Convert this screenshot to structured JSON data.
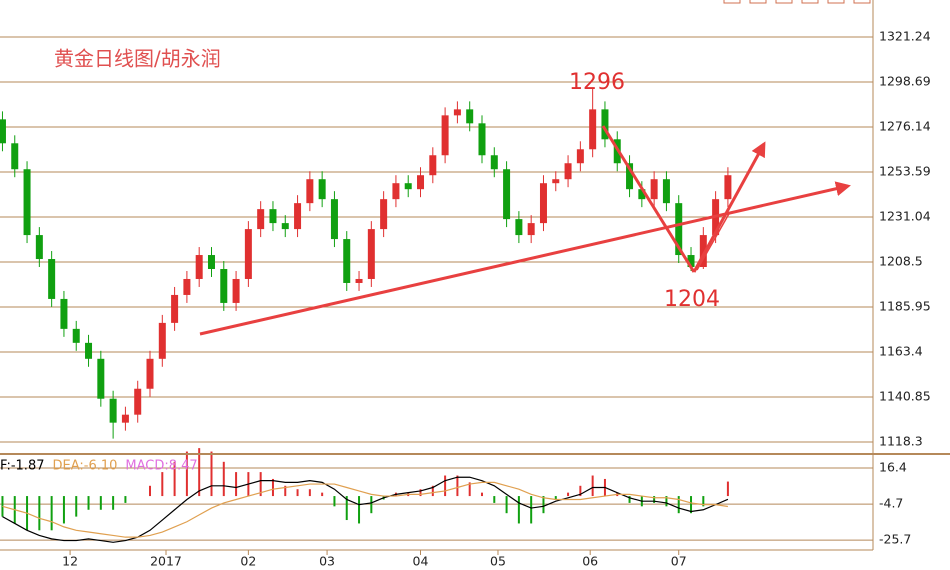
{
  "chart_data": {
    "type": "candlestick",
    "title": "黄金日线图/胡永润",
    "annotations": [
      "1296",
      "1204"
    ],
    "up_color": "#e03030",
    "down_color": "#10a010",
    "grid_color": "#b5895a",
    "open": [
      1280,
      1268,
      1255,
      1222,
      1210,
      1190,
      1175,
      1168,
      1160,
      1140,
      1128,
      1132,
      1145,
      1160,
      1178,
      1192,
      1200,
      1212,
      1205,
      1188,
      1200,
      1225,
      1235,
      1228,
      1225,
      1238,
      1250,
      1240,
      1220,
      1198,
      1200,
      1225,
      1240,
      1248,
      1245,
      1252,
      1262,
      1282,
      1285,
      1278,
      1262,
      1255,
      1230,
      1222,
      1228,
      1248,
      1250,
      1258,
      1265,
      1285,
      1270,
      1258,
      1245,
      1240,
      1250,
      1238,
      1212,
      1206,
      1222,
      1240
    ],
    "high": [
      1284,
      1272,
      1259,
      1226,
      1214,
      1194,
      1179,
      1172,
      1164,
      1144,
      1136,
      1149,
      1164,
      1182,
      1196,
      1204,
      1216,
      1216,
      1209,
      1204,
      1229,
      1239,
      1239,
      1232,
      1242,
      1254,
      1254,
      1244,
      1224,
      1204,
      1229,
      1244,
      1252,
      1252,
      1256,
      1266,
      1286,
      1289,
      1289,
      1282,
      1266,
      1259,
      1234,
      1232,
      1252,
      1254,
      1262,
      1269,
      1296,
      1289,
      1274,
      1262,
      1249,
      1254,
      1254,
      1242,
      1216,
      1226,
      1244,
      1256
    ],
    "low": [
      1264,
      1251,
      1218,
      1206,
      1186,
      1171,
      1164,
      1156,
      1136,
      1120,
      1124,
      1128,
      1141,
      1156,
      1174,
      1188,
      1196,
      1201,
      1184,
      1184,
      1196,
      1221,
      1224,
      1221,
      1221,
      1234,
      1236,
      1216,
      1194,
      1194,
      1196,
      1221,
      1236,
      1241,
      1241,
      1248,
      1258,
      1278,
      1274,
      1258,
      1251,
      1226,
      1218,
      1218,
      1224,
      1244,
      1246,
      1254,
      1261,
      1266,
      1254,
      1241,
      1236,
      1236,
      1234,
      1208,
      1204,
      1205,
      1218,
      1236
    ],
    "close": [
      1268,
      1255,
      1222,
      1210,
      1190,
      1175,
      1168,
      1160,
      1140,
      1128,
      1132,
      1145,
      1160,
      1178,
      1192,
      1200,
      1212,
      1205,
      1188,
      1200,
      1225,
      1235,
      1228,
      1225,
      1238,
      1250,
      1240,
      1220,
      1198,
      1200,
      1225,
      1240,
      1248,
      1245,
      1252,
      1262,
      1282,
      1285,
      1278,
      1262,
      1255,
      1230,
      1222,
      1228,
      1248,
      1250,
      1258,
      1265,
      1285,
      1270,
      1258,
      1245,
      1240,
      1250,
      1238,
      1212,
      1206,
      1222,
      1240,
      1252
    ],
    "ylim": [
      1113.3,
      1339.8
    ],
    "yticks": [
      1118.3,
      1140.85,
      1163.4,
      1185.95,
      1208.5,
      1231.04,
      1253.59,
      1276.14,
      1298.69,
      1321.24
    ],
    "xlim": [
      -0.2,
      70.8
    ],
    "xticks": [
      {
        "value": 5.5,
        "label": "12"
      },
      {
        "value": 13.3,
        "label": "2017"
      },
      {
        "value": 20,
        "label": "02"
      },
      {
        "value": 26.4,
        "label": "03"
      },
      {
        "value": 34,
        "label": "04"
      },
      {
        "value": 40.3,
        "label": "05"
      },
      {
        "value": 47.8,
        "label": "06"
      },
      {
        "value": 55,
        "label": "07"
      }
    ],
    "macd": {
      "legend": [
        {
          "name": "F:-1.87",
          "color": "#000000"
        },
        {
          "name": "DEA:-6.10",
          "color": "#e0a050"
        },
        {
          "name": "MACD:8.47",
          "color": "#e070e0"
        }
      ],
      "ylim": [
        -31.5,
        23.4
      ],
      "yticks": [
        16.4,
        -4.7,
        -25.7
      ],
      "dif": {
        "color": "#000000",
        "values": [
          -12,
          -16,
          -20,
          -23,
          -25,
          -26,
          -26,
          -25,
          -26,
          -27,
          -26,
          -24,
          -20,
          -14,
          -8,
          -2,
          3,
          6,
          6,
          5,
          7,
          9,
          9,
          8,
          8,
          9,
          8,
          4,
          -2,
          -5,
          -4,
          -1,
          1,
          2,
          3,
          5,
          9,
          11,
          11,
          9,
          6,
          1,
          -4,
          -7,
          -6,
          -3,
          -1,
          1,
          5,
          5,
          2,
          -1,
          -3,
          -3,
          -4,
          -7,
          -9,
          -8,
          -5,
          -1.87
        ]
      },
      "dea": {
        "color": "#e0a050",
        "values": [
          -6,
          -8,
          -10,
          -13,
          -15,
          -18,
          -20,
          -21,
          -22,
          -23,
          -24,
          -24,
          -23,
          -21,
          -18,
          -15,
          -11,
          -7,
          -4,
          -2,
          0,
          2,
          4,
          5,
          6,
          7,
          7,
          7,
          5,
          3,
          1,
          0,
          0,
          1,
          1,
          2,
          3,
          5,
          7,
          8,
          8,
          6,
          4,
          1,
          -1,
          -2,
          -2,
          -2,
          -1,
          0,
          1,
          1,
          0,
          -1,
          -1,
          -2,
          -4,
          -5,
          -5,
          -6.1
        ]
      },
      "hist": {
        "values": [
          -12,
          -16,
          -20,
          -20,
          -20,
          -16,
          -12,
          -8,
          -8,
          -8,
          -4,
          0,
          6,
          14,
          20,
          26,
          28,
          26,
          20,
          14,
          14,
          14,
          10,
          6,
          4,
          4,
          2,
          -6,
          -14,
          -16,
          -10,
          -2,
          2,
          2,
          4,
          6,
          12,
          12,
          8,
          2,
          -4,
          -10,
          -16,
          -16,
          -10,
          -2,
          2,
          6,
          12,
          10,
          2,
          -4,
          -6,
          -4,
          -6,
          -10,
          -10,
          -6,
          0,
          8.47
        ]
      }
    }
  }
}
